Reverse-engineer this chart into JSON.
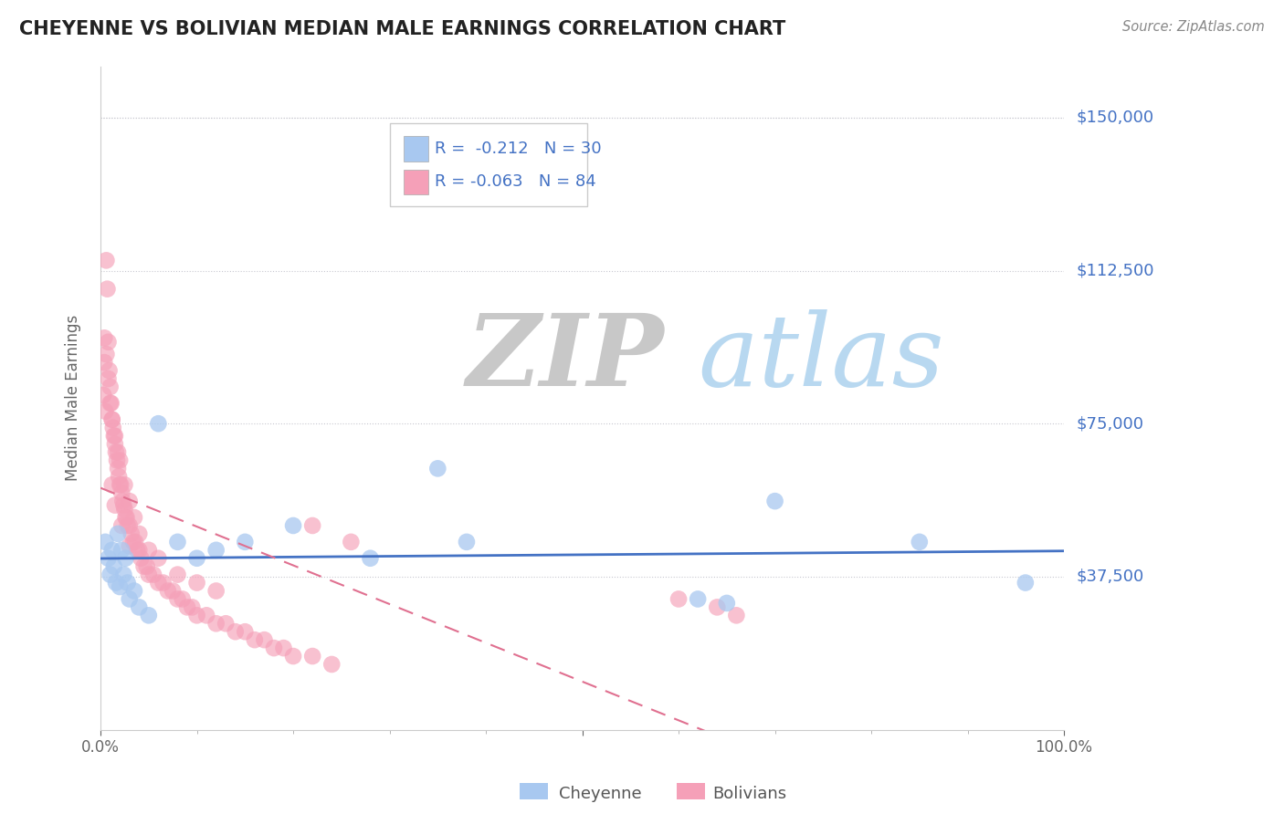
{
  "title": "CHEYENNE VS BOLIVIAN MEDIAN MALE EARNINGS CORRELATION CHART",
  "source_text": "Source: ZipAtlas.com",
  "ylabel": "Median Male Earnings",
  "yticks": [
    0,
    37500,
    75000,
    112500,
    150000
  ],
  "ytick_labels": [
    "",
    "$37,500",
    "$75,000",
    "$112,500",
    "$150,000"
  ],
  "ymin": 5000,
  "ymax": 162500,
  "xmin": 0.0,
  "xmax": 1.0,
  "cheyenne_label": "Cheyenne",
  "bolivians_label": "Bolivians",
  "cheyenne_R": -0.212,
  "cheyenne_N": 30,
  "bolivians_R": -0.063,
  "bolivians_N": 84,
  "cheyenne_color": "#a8c8f0",
  "bolivians_color": "#f5a0b8",
  "cheyenne_line_color": "#4472c4",
  "bolivians_line_color": "#e07090",
  "legend_text_color": "#4472c4",
  "background_color": "#ffffff",
  "grid_color": "#c8c8d0",
  "title_color": "#222222",
  "right_tick_color": "#4472c4",
  "watermark_zip_color": "#c8c8c8",
  "watermark_atlas_color": "#b8d8f0",
  "cheyenne_x": [
    0.005,
    0.008,
    0.01,
    0.012,
    0.014,
    0.016,
    0.018,
    0.02,
    0.022,
    0.024,
    0.026,
    0.028,
    0.03,
    0.035,
    0.04,
    0.05,
    0.06,
    0.08,
    0.1,
    0.12,
    0.15,
    0.2,
    0.28,
    0.35,
    0.38,
    0.62,
    0.65,
    0.7,
    0.85,
    0.96
  ],
  "cheyenne_y": [
    46000,
    42000,
    38000,
    44000,
    40000,
    36000,
    48000,
    35000,
    44000,
    38000,
    42000,
    36000,
    32000,
    34000,
    30000,
    28000,
    75000,
    46000,
    42000,
    44000,
    46000,
    50000,
    42000,
    64000,
    46000,
    32000,
    31000,
    56000,
    46000,
    36000
  ],
  "bolivians_x": [
    0.003,
    0.004,
    0.005,
    0.006,
    0.007,
    0.008,
    0.009,
    0.01,
    0.011,
    0.012,
    0.013,
    0.014,
    0.015,
    0.016,
    0.017,
    0.018,
    0.019,
    0.02,
    0.021,
    0.022,
    0.023,
    0.024,
    0.025,
    0.026,
    0.027,
    0.028,
    0.03,
    0.032,
    0.034,
    0.036,
    0.038,
    0.04,
    0.042,
    0.045,
    0.048,
    0.05,
    0.055,
    0.06,
    0.065,
    0.07,
    0.075,
    0.08,
    0.085,
    0.09,
    0.095,
    0.1,
    0.11,
    0.12,
    0.13,
    0.14,
    0.15,
    0.16,
    0.17,
    0.18,
    0.19,
    0.2,
    0.22,
    0.24,
    0.004,
    0.006,
    0.008,
    0.01,
    0.012,
    0.015,
    0.018,
    0.02,
    0.025,
    0.03,
    0.035,
    0.04,
    0.05,
    0.06,
    0.08,
    0.1,
    0.12,
    0.22,
    0.26,
    0.6,
    0.64,
    0.66,
    0.012,
    0.015,
    0.022,
    0.03
  ],
  "bolivians_y": [
    82000,
    90000,
    78000,
    115000,
    108000,
    95000,
    88000,
    84000,
    80000,
    76000,
    74000,
    72000,
    70000,
    68000,
    66000,
    64000,
    62000,
    60000,
    60000,
    58000,
    56000,
    55000,
    54000,
    52000,
    52000,
    50000,
    50000,
    48000,
    46000,
    46000,
    44000,
    44000,
    42000,
    40000,
    40000,
    38000,
    38000,
    36000,
    36000,
    34000,
    34000,
    32000,
    32000,
    30000,
    30000,
    28000,
    28000,
    26000,
    26000,
    24000,
    24000,
    22000,
    22000,
    20000,
    20000,
    18000,
    18000,
    16000,
    96000,
    92000,
    86000,
    80000,
    76000,
    72000,
    68000,
    66000,
    60000,
    56000,
    52000,
    48000,
    44000,
    42000,
    38000,
    36000,
    34000,
    50000,
    46000,
    32000,
    30000,
    28000,
    60000,
    55000,
    50000,
    45000
  ]
}
